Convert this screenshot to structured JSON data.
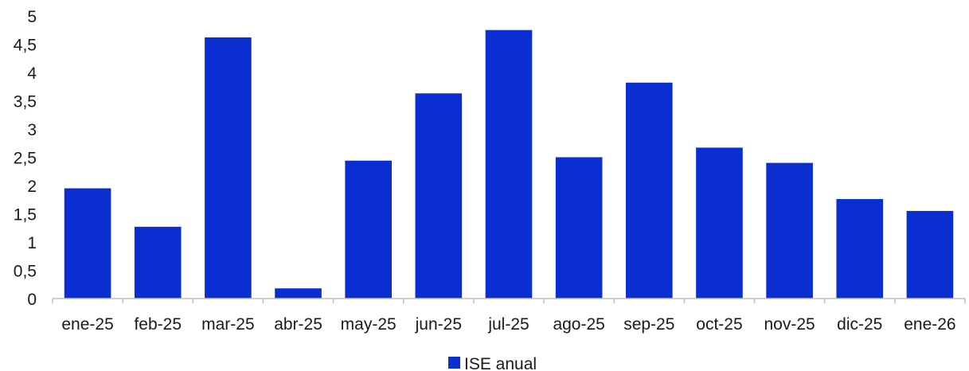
{
  "chart_data": {
    "type": "bar",
    "categories": [
      "ene-25",
      "feb-25",
      "mar-25",
      "abr-25",
      "may-25",
      "jun-25",
      "jul-25",
      "ago-25",
      "sep-25",
      "oct-25",
      "nov-25",
      "dic-25",
      "ene-26"
    ],
    "series": [
      {
        "name": "ISE anual",
        "color": "#0a2ecf",
        "values": [
          1.95,
          1.27,
          4.62,
          0.18,
          2.44,
          3.63,
          4.75,
          2.5,
          3.82,
          2.67,
          2.4,
          1.76,
          1.55
        ]
      }
    ],
    "yticks": [
      "0",
      "0,5",
      "1",
      "1,5",
      "2",
      "2,5",
      "3",
      "3,5",
      "4",
      "4,5",
      "5"
    ],
    "ylim": [
      0,
      5
    ],
    "grid": false,
    "legend_position": "bottom-center"
  }
}
